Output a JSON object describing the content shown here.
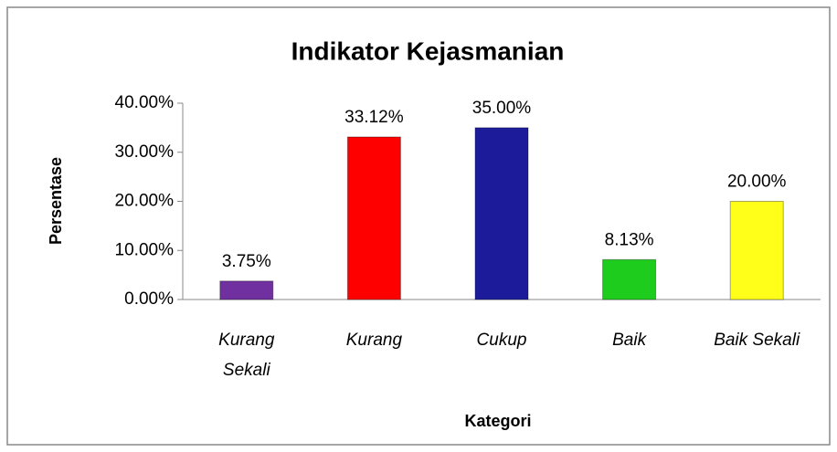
{
  "chart_data": {
    "type": "bar",
    "title": "Indikator Kejasmanian",
    "x_label": "Kategori",
    "y_label": "Persentase",
    "categories": [
      "Kurang Sekali",
      "Kurang",
      "Cukup",
      "Baik",
      "Baik Sekali"
    ],
    "values": [
      3.75,
      33.12,
      35.0,
      8.13,
      20.0
    ],
    "value_labels": [
      "3.75%",
      "33.12%",
      "35.00%",
      "8.13%",
      "20.00%"
    ],
    "colors": [
      "#7030a0",
      "#ff0000",
      "#1c1c9a",
      "#1ecc1e",
      "#ffff1a"
    ],
    "ylim": [
      0,
      40
    ],
    "yticks": [
      {
        "value": 0,
        "label": "0.00%"
      },
      {
        "value": 10,
        "label": "10.00%"
      },
      {
        "value": 20,
        "label": "20.00%"
      },
      {
        "value": 30,
        "label": "30.00%"
      },
      {
        "value": 40,
        "label": "40.00%"
      }
    ]
  }
}
